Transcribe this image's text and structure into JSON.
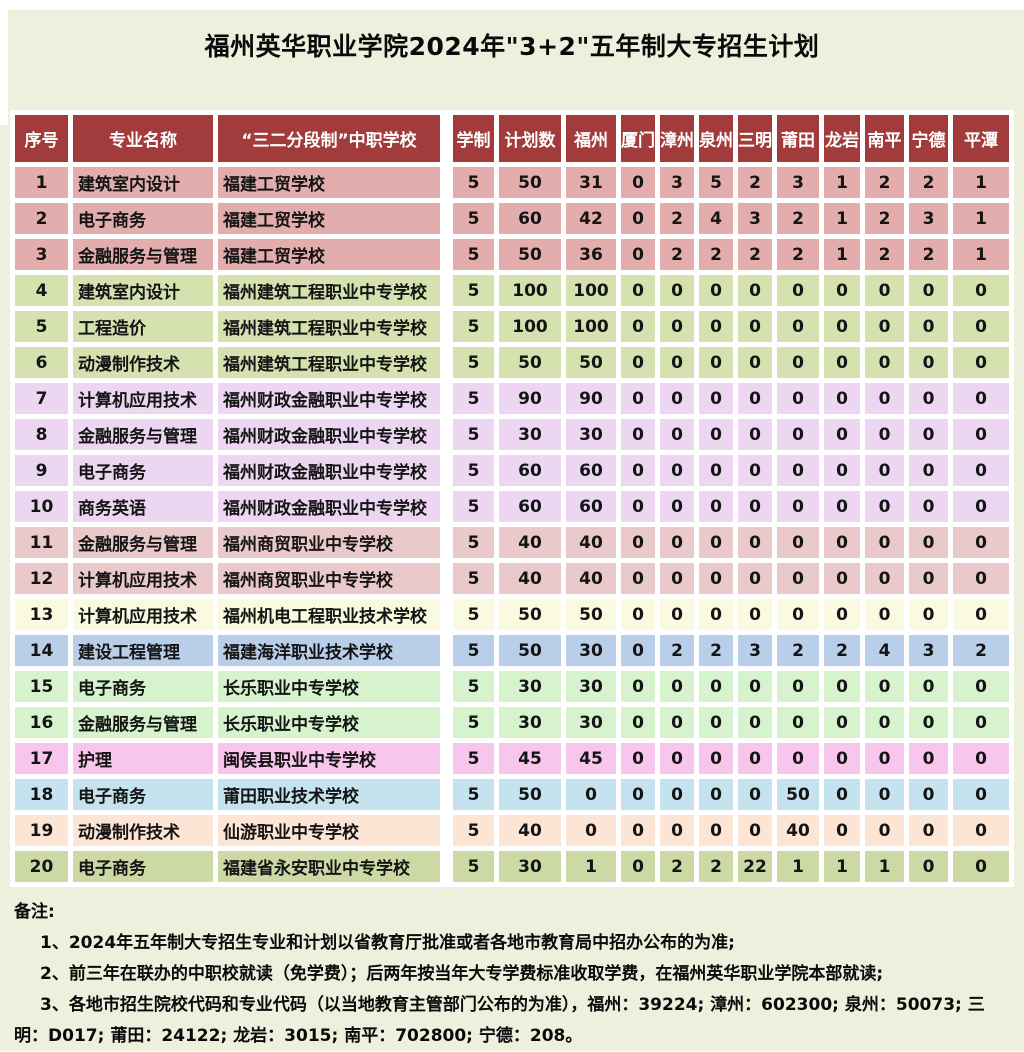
{
  "page": {
    "bg_color": "#edf0dc",
    "title": "福州英华职业学院2024年\"3+2\"五年制大专招生计划"
  },
  "table": {
    "header_bg": "#a23c3c",
    "header_text_color": "#ffffff",
    "border_color": "#ffffff",
    "headers": [
      "序号",
      "专业名称",
      "“三二分段制”中职学校",
      "学制",
      "计划数",
      "福州",
      "厦门",
      "漳州",
      "泉州",
      "三明",
      "莆田",
      "龙岩",
      "南平",
      "宁德",
      "平潭"
    ],
    "rows": [
      {
        "no": "1",
        "major": "建筑室内设计",
        "school": "福建工贸学校",
        "years": "5",
        "plan": "50",
        "cities": [
          "31",
          "0",
          "3",
          "5",
          "2",
          "3",
          "1",
          "2",
          "2",
          "1"
        ],
        "color": "#e3adad"
      },
      {
        "no": "2",
        "major": "电子商务",
        "school": "福建工贸学校",
        "years": "5",
        "plan": "60",
        "cities": [
          "42",
          "0",
          "2",
          "4",
          "3",
          "2",
          "1",
          "2",
          "3",
          "1"
        ],
        "color": "#e3adad"
      },
      {
        "no": "3",
        "major": "金融服务与管理",
        "school": "福建工贸学校",
        "years": "5",
        "plan": "50",
        "cities": [
          "36",
          "0",
          "2",
          "2",
          "2",
          "2",
          "1",
          "2",
          "2",
          "1"
        ],
        "color": "#e3adad"
      },
      {
        "no": "4",
        "major": "建筑室内设计",
        "school": "福州建筑工程职业中专学校",
        "years": "5",
        "plan": "100",
        "cities": [
          "100",
          "0",
          "0",
          "0",
          "0",
          "0",
          "0",
          "0",
          "0",
          "0"
        ],
        "color": "#d5e1af"
      },
      {
        "no": "5",
        "major": "工程造价",
        "school": "福州建筑工程职业中专学校",
        "years": "5",
        "plan": "100",
        "cities": [
          "100",
          "0",
          "0",
          "0",
          "0",
          "0",
          "0",
          "0",
          "0",
          "0"
        ],
        "color": "#d5e1af"
      },
      {
        "no": "6",
        "major": "动漫制作技术",
        "school": "福州建筑工程职业中专学校",
        "years": "5",
        "plan": "50",
        "cities": [
          "50",
          "0",
          "0",
          "0",
          "0",
          "0",
          "0",
          "0",
          "0",
          "0"
        ],
        "color": "#d5e1af"
      },
      {
        "no": "7",
        "major": "计算机应用技术",
        "school": "福州财政金融职业中专学校",
        "years": "5",
        "plan": "90",
        "cities": [
          "90",
          "0",
          "0",
          "0",
          "0",
          "0",
          "0",
          "0",
          "0",
          "0"
        ],
        "color": "#ecd6f1"
      },
      {
        "no": "8",
        "major": "金融服务与管理",
        "school": "福州财政金融职业中专学校",
        "years": "5",
        "plan": "30",
        "cities": [
          "30",
          "0",
          "0",
          "0",
          "0",
          "0",
          "0",
          "0",
          "0",
          "0"
        ],
        "color": "#ecd6f1"
      },
      {
        "no": "9",
        "major": "电子商务",
        "school": "福州财政金融职业中专学校",
        "years": "5",
        "plan": "60",
        "cities": [
          "60",
          "0",
          "0",
          "0",
          "0",
          "0",
          "0",
          "0",
          "0",
          "0"
        ],
        "color": "#ecd6f1"
      },
      {
        "no": "10",
        "major": "商务英语",
        "school": "福州财政金融职业中专学校",
        "years": "5",
        "plan": "60",
        "cities": [
          "60",
          "0",
          "0",
          "0",
          "0",
          "0",
          "0",
          "0",
          "0",
          "0"
        ],
        "color": "#ecd6f1"
      },
      {
        "no": "11",
        "major": "金融服务与管理",
        "school": "福州商贸职业中专学校",
        "years": "5",
        "plan": "40",
        "cities": [
          "40",
          "0",
          "0",
          "0",
          "0",
          "0",
          "0",
          "0",
          "0",
          "0"
        ],
        "color": "#e9c9c9"
      },
      {
        "no": "12",
        "major": "计算机应用技术",
        "school": "福州商贸职业中专学校",
        "years": "5",
        "plan": "40",
        "cities": [
          "40",
          "0",
          "0",
          "0",
          "0",
          "0",
          "0",
          "0",
          "0",
          "0"
        ],
        "color": "#e9c9c9"
      },
      {
        "no": "13",
        "major": "计算机应用技术",
        "school": "福州机电工程职业技术学校",
        "years": "5",
        "plan": "50",
        "cities": [
          "50",
          "0",
          "0",
          "0",
          "0",
          "0",
          "0",
          "0",
          "0",
          "0"
        ],
        "color": "#fafae1"
      },
      {
        "no": "14",
        "major": "建设工程管理",
        "school": "福建海洋职业技术学校",
        "years": "5",
        "plan": "50",
        "cities": [
          "30",
          "0",
          "2",
          "2",
          "3",
          "2",
          "2",
          "4",
          "3",
          "2"
        ],
        "color": "#b9cfe9"
      },
      {
        "no": "15",
        "major": "电子商务",
        "school": "长乐职业中专学校",
        "years": "5",
        "plan": "30",
        "cities": [
          "30",
          "0",
          "0",
          "0",
          "0",
          "0",
          "0",
          "0",
          "0",
          "0"
        ],
        "color": "#d6f3cd"
      },
      {
        "no": "16",
        "major": "金融服务与管理",
        "school": "长乐职业中专学校",
        "years": "5",
        "plan": "30",
        "cities": [
          "30",
          "0",
          "0",
          "0",
          "0",
          "0",
          "0",
          "0",
          "0",
          "0"
        ],
        "color": "#d6f3cd"
      },
      {
        "no": "17",
        "major": "护理",
        "school": "闽侯县职业中专学校",
        "years": "5",
        "plan": "45",
        "cities": [
          "45",
          "0",
          "0",
          "0",
          "0",
          "0",
          "0",
          "0",
          "0",
          "0"
        ],
        "color": "#f8c6ec"
      },
      {
        "no": "18",
        "major": "电子商务",
        "school": "莆田职业技术学校",
        "years": "5",
        "plan": "50",
        "cities": [
          "0",
          "0",
          "0",
          "0",
          "0",
          "50",
          "0",
          "0",
          "0",
          "0"
        ],
        "color": "#c4e3ee"
      },
      {
        "no": "19",
        "major": "动漫制作技术",
        "school": "仙游职业中专学校",
        "years": "5",
        "plan": "40",
        "cities": [
          "0",
          "0",
          "0",
          "0",
          "0",
          "40",
          "0",
          "0",
          "0",
          "0"
        ],
        "color": "#fce5d5"
      },
      {
        "no": "20",
        "major": "电子商务",
        "school": "福建省永安职业中专学校",
        "years": "5",
        "plan": "30",
        "cities": [
          "1",
          "0",
          "2",
          "2",
          "22",
          "1",
          "1",
          "1",
          "0",
          "0"
        ],
        "color": "#cdd9a4"
      }
    ]
  },
  "notes": {
    "label": "备注:",
    "items": [
      "1、2024年五年制大专招生专业和计划以省教育厅批准或者各地市教育局中招办公布的为准;",
      "2、前三年在联办的中职校就读（免学费）；后两年按当年大专学费标准收取学费，在福州英华职业学院本部就读;",
      "3、各地市招生院校代码和专业代码（以当地教育主管部门公布的为准），福州：39224; 漳州：602300; 泉州：50073; 三明：D017; 莆田：24122; 龙岩：3015; 南平：702800; 宁德：208。"
    ]
  }
}
